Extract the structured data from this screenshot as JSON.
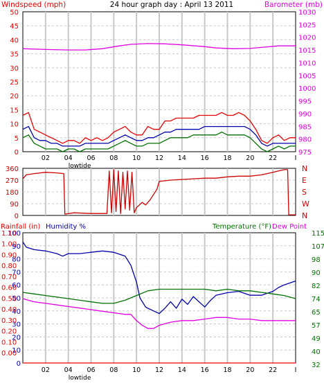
{
  "colors": {
    "red": "#e60000",
    "magenta": "#e000e0",
    "blue": "#0000aa",
    "green": "#007000",
    "darkred": "#cc0000",
    "grid": "#c8c8c8",
    "text": "#000000"
  },
  "top": {
    "title": "24 hour graph day : April 13 2011",
    "left_label": "Windspeed (mph)",
    "right_label": "Barometer (mb)"
  },
  "mid": {
    "compass": [
      "N",
      "W",
      "S",
      "E",
      "N"
    ]
  },
  "bottom": {
    "left_label_1": "Rainfall (in)",
    "left_label_2": "Humidity %",
    "right_label_1": "Temperature (°F)",
    "right_label_2": "Dew Point"
  },
  "x_ticks": [
    "02",
    "04",
    "06",
    "08",
    "10",
    "12",
    "14",
    "16",
    "18",
    "20",
    "22"
  ],
  "x_end_tick": "I",
  "lowtide_label": "lowtide",
  "chart_data": [
    {
      "type": "line",
      "panel": "wind-barometer",
      "title": "24 hour graph day : April 13 2011",
      "x_unit": "hour",
      "ylim_left": [
        0,
        50
      ],
      "yticks_left": [
        "0",
        "5",
        "10",
        "15",
        "20",
        "25",
        "30",
        "35",
        "40",
        "45",
        "50"
      ],
      "ylim_right": [
        975,
        1030
      ],
      "yticks_right": [
        "975",
        "980",
        "985",
        "990",
        "995",
        "1000",
        "1005",
        "1010",
        "1015",
        "1020",
        "1025",
        "1030"
      ],
      "series": [
        {
          "color": "#e000e0",
          "axis": "right",
          "x": [
            0,
            2,
            4,
            5.5,
            7,
            8.5,
            9.5,
            11,
            12.5,
            14,
            16,
            17,
            18.5,
            20,
            21,
            22.5,
            24
          ],
          "y": [
            1015.5,
            1015.2,
            1015,
            1015,
            1015.5,
            1016.6,
            1017.2,
            1017.5,
            1017.4,
            1017,
            1016.3,
            1015.8,
            1015.5,
            1015.6,
            1016,
            1016.6,
            1016.6
          ]
        },
        {
          "color": "#e60000",
          "axis": "left",
          "x": [
            0,
            0.5,
            1,
            1.5,
            2,
            2.5,
            3,
            3.5,
            4,
            4.5,
            5,
            5.5,
            6,
            6.5,
            7,
            7.5,
            8,
            8.5,
            9,
            9.5,
            10,
            10.5,
            11,
            11.5,
            12,
            12.5,
            13,
            13.5,
            14,
            14.5,
            15,
            15.5,
            16,
            16.5,
            17,
            17.5,
            18,
            18.5,
            19,
            19.5,
            20,
            20.5,
            21,
            21.5,
            22,
            22.5,
            23,
            23.5,
            24
          ],
          "y": [
            13,
            14,
            8,
            7,
            6,
            5,
            4,
            3,
            4,
            4,
            3,
            5,
            4,
            5,
            4,
            5,
            7,
            8,
            9,
            7,
            6,
            6,
            9,
            8,
            8,
            11,
            11,
            12,
            12,
            12,
            12,
            13,
            13,
            13,
            13,
            14,
            13,
            13,
            14,
            13,
            11,
            8,
            4,
            3,
            5,
            6,
            4,
            5,
            5
          ]
        },
        {
          "color": "#0000aa",
          "axis": "left",
          "x": [
            0,
            0.5,
            1,
            1.5,
            2,
            2.5,
            3,
            3.5,
            4,
            4.5,
            5,
            5.5,
            6,
            6.5,
            7,
            7.5,
            8,
            8.5,
            9,
            9.5,
            10,
            10.5,
            11,
            11.5,
            12,
            12.5,
            13,
            13.5,
            14,
            14.5,
            15,
            15.5,
            16,
            16.5,
            17,
            17.5,
            18,
            18.5,
            19,
            19.5,
            20,
            20.5,
            21,
            21.5,
            22,
            22.5,
            23,
            23.5,
            24
          ],
          "y": [
            8,
            9,
            5,
            4,
            4,
            3,
            3,
            2,
            2,
            2,
            2,
            3,
            3,
            3,
            3,
            3,
            4,
            5,
            6,
            5,
            4,
            4,
            5,
            5,
            6,
            7,
            7,
            8,
            8,
            8,
            8,
            8,
            9,
            9,
            9,
            9,
            9,
            9,
            9,
            9,
            8,
            6,
            3,
            2,
            3,
            3,
            3,
            3,
            3
          ]
        },
        {
          "color": "#007000",
          "axis": "left",
          "x": [
            0,
            0.5,
            1,
            1.5,
            2,
            2.5,
            3,
            3.5,
            4,
            4.5,
            5,
            5.5,
            6,
            6.5,
            7,
            7.5,
            8,
            8.5,
            9,
            9.5,
            10,
            10.5,
            11,
            11.5,
            12,
            12.5,
            13,
            13.5,
            14,
            14.5,
            15,
            15.5,
            16,
            16.5,
            17,
            17.5,
            18,
            18.5,
            19,
            19.5,
            20,
            20.5,
            21,
            21.5,
            22,
            22.5,
            23,
            23.5,
            24
          ],
          "y": [
            5,
            6,
            3,
            2,
            1,
            1,
            1,
            0,
            1,
            1,
            0,
            1,
            1,
            1,
            1,
            1,
            2,
            3,
            4,
            3,
            2,
            2,
            3,
            3,
            3,
            4,
            5,
            5,
            5,
            5,
            6,
            6,
            6,
            6,
            6,
            7,
            6,
            6,
            6,
            6,
            5,
            3,
            1,
            0,
            1,
            2,
            1,
            2,
            2
          ]
        }
      ]
    },
    {
      "type": "line",
      "panel": "wind-direction",
      "ylim": [
        0,
        360
      ],
      "yticks": [
        "0",
        "90",
        "180",
        "270",
        "360"
      ],
      "series": [
        {
          "color": "#cc0000",
          "x": [
            0,
            0.3,
            1,
            2,
            3,
            3.6,
            3.7,
            4.5,
            6,
            7.4,
            7.6,
            7.8,
            8,
            8.2,
            8.4,
            8.6,
            8.8,
            9,
            9.2,
            9.4,
            9.6,
            9.8,
            10,
            10.5,
            10.8,
            11.2,
            11.8,
            12,
            13,
            14,
            15,
            16,
            17,
            18,
            19,
            20,
            21,
            22,
            22.5,
            23,
            23.3,
            23.4,
            24
          ],
          "y": [
            280,
            310,
            320,
            330,
            325,
            320,
            10,
            20,
            15,
            15,
            340,
            20,
            350,
            30,
            340,
            15,
            330,
            50,
            340,
            40,
            330,
            20,
            60,
            100,
            80,
            120,
            200,
            260,
            270,
            275,
            280,
            285,
            285,
            295,
            300,
            300,
            310,
            330,
            340,
            350,
            350,
            5,
            5
          ]
        }
      ]
    },
    {
      "type": "line",
      "panel": "rain-humidity-temp",
      "ylim_left_humidity": [
        0,
        100
      ],
      "yticks_left_humidity": [
        "0",
        "10",
        "20",
        "30",
        "40",
        "50",
        "60",
        "70",
        "80",
        "90",
        "100"
      ],
      "ylim_left_rain": [
        0,
        1.2
      ],
      "yticks_left_rain": [
        "0.00",
        "0.10",
        "0.20",
        "0.30",
        "0.40",
        "0.50",
        "0.60",
        "0.70",
        "0.80",
        "0.90",
        "1.00",
        "1.10"
      ],
      "ylim_right": [
        32,
        115
      ],
      "yticks_right": [
        "32",
        "40",
        "49",
        "57",
        "65",
        "74",
        "82",
        "90",
        "98",
        "107",
        "115"
      ],
      "series": [
        {
          "color": "#0000aa",
          "axis": "left_humidity",
          "x": [
            0,
            0.3,
            1,
            2,
            3,
            3.5,
            4,
            5,
            6,
            7,
            8,
            9,
            9.5,
            10,
            10.3,
            10.8,
            11,
            11.5,
            12,
            12.5,
            13,
            13.5,
            14,
            14.5,
            15,
            16,
            16.5,
            17,
            18,
            19,
            20,
            21,
            22,
            22.5,
            23,
            24
          ],
          "y": [
            93,
            89,
            87,
            86,
            84,
            82,
            84,
            84,
            85,
            86,
            85,
            82,
            75,
            62,
            50,
            43,
            42,
            40,
            38,
            42,
            47,
            42,
            49,
            45,
            51,
            43,
            48,
            52,
            54,
            55,
            52,
            52,
            55,
            58,
            60,
            63
          ]
        },
        {
          "color": "#007000",
          "axis": "right",
          "x": [
            0,
            1,
            2,
            3,
            4,
            5,
            6,
            7,
            8,
            9,
            10,
            11,
            12,
            13,
            14,
            15,
            16,
            17,
            18,
            19,
            20,
            21,
            22,
            23,
            24
          ],
          "y": [
            77,
            76,
            75,
            74,
            73,
            72,
            71,
            70,
            70,
            72,
            75,
            78,
            79,
            79,
            79,
            79,
            79,
            78,
            79,
            78,
            78,
            77,
            76,
            75,
            73
          ]
        },
        {
          "color": "#e000e0",
          "axis": "right",
          "x": [
            0,
            1,
            2,
            3,
            4,
            5,
            6,
            7,
            8,
            9,
            9.5,
            10,
            10.5,
            11,
            11.5,
            12,
            13,
            14,
            15,
            16,
            17,
            18,
            19,
            20,
            21,
            22,
            23,
            24
          ],
          "y": [
            73,
            71,
            70,
            69,
            68,
            67,
            66,
            65,
            64,
            63,
            63,
            59,
            56,
            54,
            54,
            56,
            58,
            59,
            59,
            60,
            61,
            61,
            60,
            60,
            59,
            59,
            59,
            59
          ]
        },
        {
          "color": "#e60000",
          "axis": "left_rain",
          "x": [
            0,
            24
          ],
          "y": [
            0,
            0
          ]
        }
      ]
    }
  ]
}
